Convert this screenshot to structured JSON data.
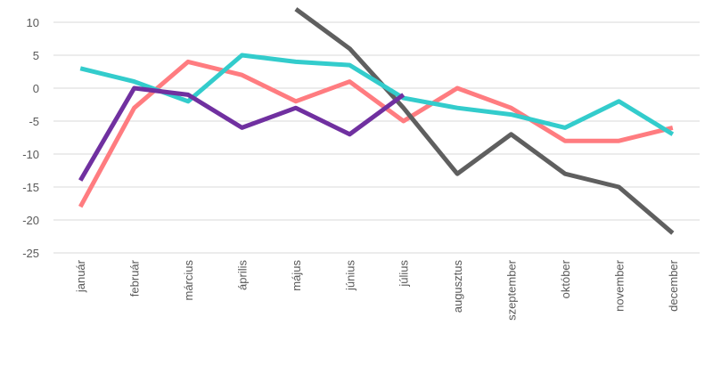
{
  "chart_data": {
    "type": "line",
    "categories": [
      "január",
      "február",
      "március",
      "április",
      "május",
      "június",
      "július",
      "augusztus",
      "szeptember",
      "október",
      "november",
      "december"
    ],
    "ylim": [
      -25,
      10
    ],
    "yticks": [
      10,
      5,
      0,
      -5,
      -10,
      -15,
      -20,
      -25
    ],
    "grid": true,
    "legend": "bottom",
    "series": [
      {
        "color": "#ff7c80",
        "values": [
          -18,
          -3,
          4,
          2,
          -2,
          1,
          -5,
          0,
          -3,
          -8,
          -8,
          -6
        ]
      },
      {
        "color": "#5f5f5f",
        "values": [
          null,
          null,
          null,
          null,
          12,
          6,
          -3,
          -13,
          -7,
          -13,
          -15,
          -22
        ]
      },
      {
        "color": "#33cccc",
        "values": [
          3,
          1,
          -2,
          5,
          4,
          3.5,
          -1.5,
          -3,
          -4,
          -6,
          -2,
          -7
        ]
      },
      {
        "color": "#7030a0",
        "values": [
          -14,
          0,
          -1,
          -6,
          -3,
          -7,
          -1,
          null,
          null,
          null,
          null,
          null
        ]
      }
    ]
  }
}
